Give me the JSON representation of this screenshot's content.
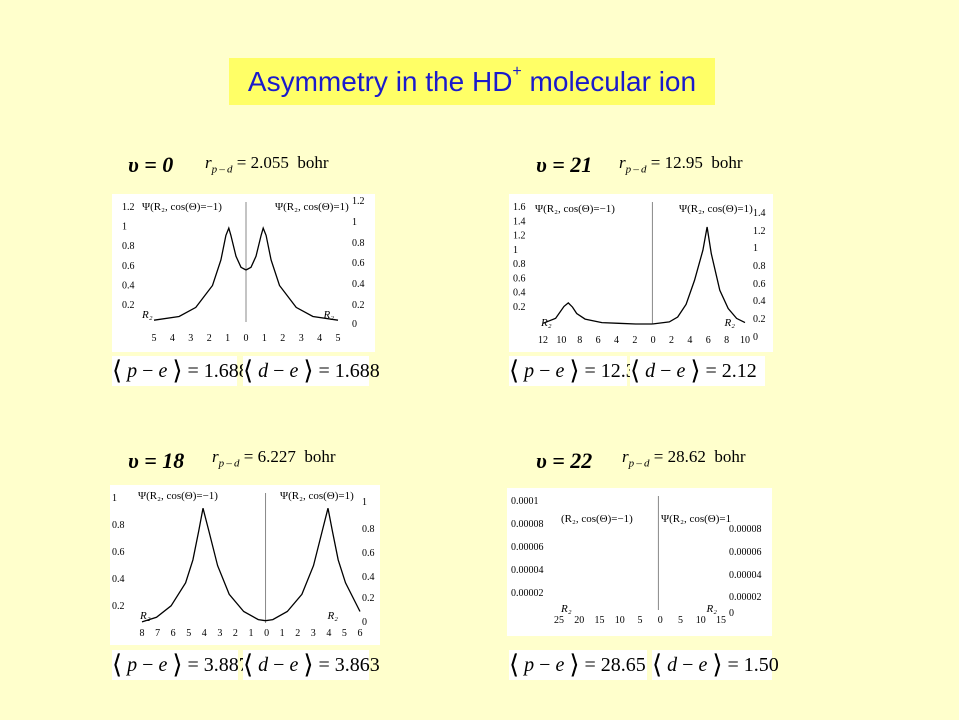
{
  "title": {
    "text": "Asymmetry in the HD",
    "sup": "+",
    "rest": " molecular ion"
  },
  "chart_data": [
    {
      "type": "line",
      "v": "υ = 0",
      "rpd": "= 2.055",
      "rpd_unit": "bohr",
      "left_label": "Ψ(R₂, cos(Θ)=−1)",
      "right_label": "Ψ(R₂, cos(Θ)=1)",
      "axis_label": "R₂",
      "x_ticks": [
        "5",
        "4",
        "3",
        "2",
        "1",
        "0",
        "1",
        "2",
        "3",
        "4",
        "5"
      ],
      "y_ticks_left": [
        "1.2",
        "1",
        "0.8",
        "0.6",
        "0.4",
        "0.2"
      ],
      "y_ticks_right": [
        "1.2",
        "1",
        "0.8",
        "0.6",
        "0.4",
        "0.2",
        "0"
      ],
      "xlim": [
        -5.5,
        5.5
      ],
      "ylim": [
        0,
        1.25
      ],
      "series": [
        {
          "x": [
            -5.5,
            -4,
            -3,
            -2,
            -1.5,
            -1.2,
            -1.03,
            -0.9,
            -0.6,
            -0.3,
            0
          ],
          "y": [
            0.02,
            0.06,
            0.16,
            0.4,
            0.68,
            0.95,
            1.03,
            0.95,
            0.72,
            0.6,
            0.57
          ]
        },
        {
          "x": [
            0,
            0.3,
            0.6,
            0.9,
            1.03,
            1.2,
            1.5,
            2,
            3,
            4,
            5.5
          ],
          "y": [
            0.57,
            0.6,
            0.72,
            0.95,
            1.03,
            0.95,
            0.68,
            0.4,
            0.16,
            0.06,
            0.02
          ]
        }
      ],
      "pe": "= 1.688",
      "de": "= 1.688"
    },
    {
      "type": "line",
      "v": "υ = 21",
      "rpd": "= 12.95",
      "rpd_unit": "bohr",
      "left_label": "Ψ(R₂, cos(Θ)=−1)",
      "right_label": "Ψ(R₂, cos(Θ)=1)",
      "axis_label": "R₂",
      "x_ticks": [
        "12",
        "10",
        "8",
        "6",
        "4",
        "2",
        "0",
        "2",
        "4",
        "6",
        "8",
        "10"
      ],
      "y_ticks_left": [
        "1.6",
        "1.4",
        "1.2",
        "1",
        "0.8",
        "0.6",
        "0.4",
        "0.2"
      ],
      "y_ticks_right": [
        "1.4",
        "1.2",
        "1",
        "0.8",
        "0.6",
        "0.4",
        "0.2",
        "0"
      ],
      "xlim": [
        -13,
        11
      ],
      "ylim": [
        0,
        1.65
      ],
      "series": [
        {
          "x": [
            -13,
            -11.5,
            -10.5,
            -10,
            -9.5,
            -9,
            -8,
            -6,
            -4,
            -2,
            0
          ],
          "y": [
            0.01,
            0.08,
            0.25,
            0.3,
            0.24,
            0.15,
            0.07,
            0.02,
            0.01,
            0,
            0
          ]
        },
        {
          "x": [
            0,
            2,
            3,
            4,
            5,
            6,
            6.5,
            7,
            8,
            9,
            10,
            11
          ],
          "y": [
            0,
            0.03,
            0.1,
            0.28,
            0.62,
            1.05,
            1.38,
            1.0,
            0.48,
            0.22,
            0.08,
            0.02
          ]
        }
      ],
      "pe": "= 12.38",
      "de": "= 2.12"
    },
    {
      "type": "line",
      "v": "υ = 18",
      "rpd": "= 6.227",
      "rpd_unit": "bohr",
      "left_label": "Ψ(R₂, cos(Θ)=−1)",
      "right_label": "Ψ(R₂, cos(Θ)=1)",
      "axis_label": "R₂",
      "x_ticks": [
        "8",
        "7",
        "6",
        "5",
        "4",
        "3",
        "2",
        "1",
        "0",
        "1",
        "2",
        "3",
        "4",
        "5",
        "6"
      ],
      "y_ticks_left": [
        "1",
        "0.8",
        "0.6",
        "0.4",
        "0.2"
      ],
      "y_ticks_right": [
        "1",
        "0.8",
        "0.6",
        "0.4",
        "0.2",
        "0"
      ],
      "xlim": [
        -8.5,
        6.5
      ],
      "ylim": [
        0,
        1.08
      ],
      "series": [
        {
          "x": [
            -8.5,
            -7.5,
            -6.5,
            -5.5,
            -5,
            -4.6,
            -4.3,
            -3.9,
            -3.3,
            -2.5,
            -1.5,
            -0.5,
            0
          ],
          "y": [
            0.01,
            0.05,
            0.15,
            0.35,
            0.55,
            0.8,
            1.0,
            0.8,
            0.5,
            0.25,
            0.1,
            0.03,
            0.02
          ]
        },
        {
          "x": [
            0,
            0.5,
            1.5,
            2.5,
            3.3,
            3.9,
            4.3,
            4.6,
            5,
            5.5,
            6.5
          ],
          "y": [
            0.02,
            0.03,
            0.1,
            0.25,
            0.5,
            0.8,
            1.0,
            0.8,
            0.55,
            0.35,
            0.1
          ]
        }
      ],
      "pe": "= 3.887",
      "de": "= 3.863"
    },
    {
      "type": "line",
      "v": "υ = 22",
      "rpd": "= 28.62",
      "rpd_unit": "bohr",
      "left_label": "(R₂, cos(Θ)=−1)",
      "right_label": "Ψ(R₂, cos(Θ)=1",
      "axis_label": "R₂",
      "x_ticks": [
        "25",
        "20",
        "15",
        "10",
        "5",
        "0",
        "5",
        "10",
        "15"
      ],
      "y_ticks_left": [
        "0.0001",
        "0.00008",
        "0.00006",
        "0.00004",
        "0.00002"
      ],
      "y_ticks_right": [
        "0.00008",
        "0.00006",
        "0.00004",
        "0.00002",
        "0"
      ],
      "xlim": [
        -27,
        17
      ],
      "ylim": [
        0,
        0.0001
      ],
      "series": [],
      "pe": "= 28.65",
      "de": "= 1.50"
    }
  ]
}
